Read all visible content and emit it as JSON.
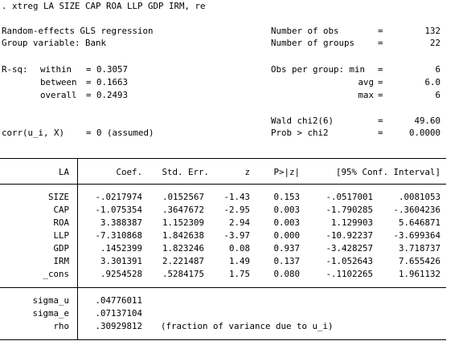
{
  "command": ". xtreg LA SIZE CAP ROA LLP GDP IRM, re",
  "header": {
    "model": "Random-effects GLS regression",
    "group_variable": "Group variable: Bank",
    "rsq_label": "R-sq:",
    "rsq_within_label": "within",
    "rsq_within_value": "= 0.3057",
    "rsq_between_label": "between",
    "rsq_between_value": "= 0.1663",
    "rsq_overall_label": "overall",
    "rsq_overall_value": "= 0.2493",
    "corr_label": "corr(u_i, X)",
    "corr_value": "= 0 (assumed)",
    "nobs_label": "Number of obs",
    "nobs_value": "132",
    "ngroups_label": "Number of groups",
    "ngroups_value": "22",
    "obs_min_label": "Obs per group: min",
    "obs_min_value": "6",
    "obs_avg_label": "avg",
    "obs_avg_value": "6.0",
    "obs_max_label": "max",
    "obs_max_value": "6",
    "wald_label": "Wald chi2(6)",
    "wald_value": "49.60",
    "prob_label": "Prob > chi2",
    "prob_value": "0.0000",
    "eq": "="
  },
  "table": {
    "columns": [
      "LA",
      "Coef.",
      "Std. Err.",
      "z",
      "P>|z|",
      "[95% Conf. Interval]"
    ],
    "rows": [
      {
        "var": "SIZE",
        "coef": "-.0217974",
        "se": ".0152567",
        "z": "-1.43",
        "p": "0.153",
        "lo": "-.0517001",
        "hi": ".0081053"
      },
      {
        "var": "CAP",
        "coef": "-1.075354",
        "se": ".3647672",
        "z": "-2.95",
        "p": "0.003",
        "lo": "-1.790285",
        "hi": "-.3604236"
      },
      {
        "var": "ROA",
        "coef": "3.388387",
        "se": "1.152309",
        "z": "2.94",
        "p": "0.003",
        "lo": "1.129903",
        "hi": "5.646871"
      },
      {
        "var": "LLP",
        "coef": "-7.310868",
        "se": "1.842638",
        "z": "-3.97",
        "p": "0.000",
        "lo": "-10.92237",
        "hi": "-3.699364"
      },
      {
        "var": "GDP",
        "coef": ".1452399",
        "se": "1.823246",
        "z": "0.08",
        "p": "0.937",
        "lo": "-3.428257",
        "hi": "3.718737"
      },
      {
        "var": "IRM",
        "coef": "3.301391",
        "se": "2.221487",
        "z": "1.49",
        "p": "0.137",
        "lo": "-1.052643",
        "hi": "7.655426"
      },
      {
        "var": "_cons",
        "coef": ".9254528",
        "se": ".5284175",
        "z": "1.75",
        "p": "0.080",
        "lo": "-.1102265",
        "hi": "1.961132"
      }
    ],
    "sigma_u_label": "sigma_u",
    "sigma_u_value": ".04776011",
    "sigma_e_label": "sigma_e",
    "sigma_e_value": ".07137104",
    "rho_label": "rho",
    "rho_value": ".30929812",
    "rho_note": "(fraction of variance due to u_i)"
  }
}
